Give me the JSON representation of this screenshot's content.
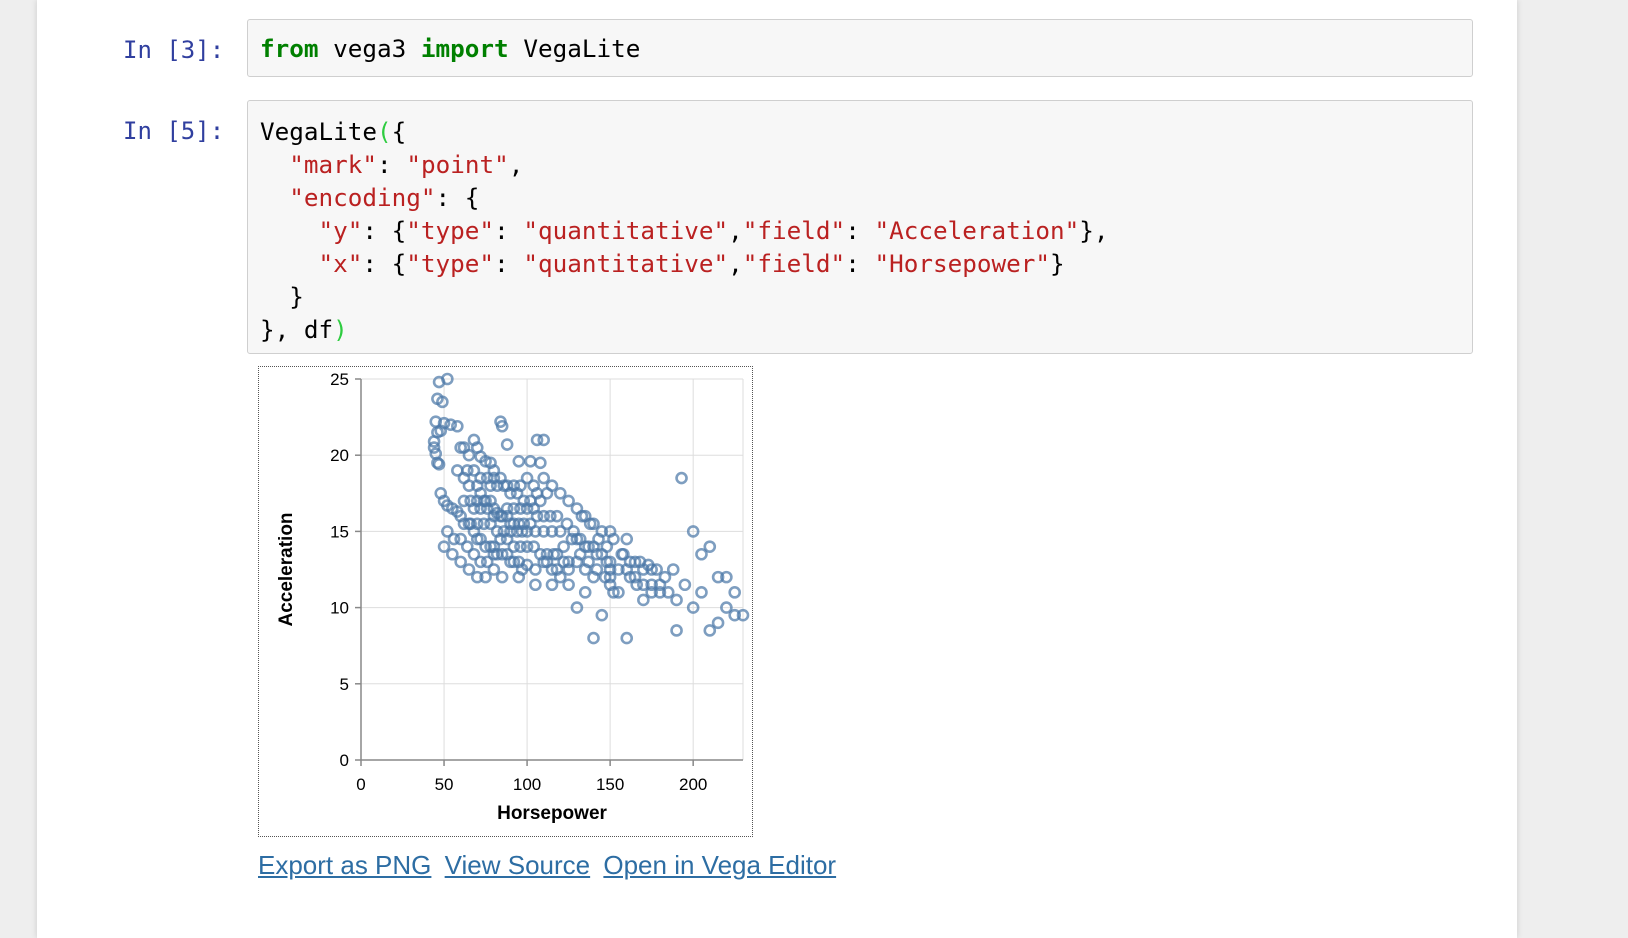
{
  "cells": [
    {
      "prompt": "In [3]:",
      "code_tokens": [
        {
          "t": "from",
          "c": "kw"
        },
        {
          "t": " vega3 ",
          "c": ""
        },
        {
          "t": "import",
          "c": "kw"
        },
        {
          "t": " VegaLite",
          "c": ""
        }
      ]
    },
    {
      "prompt": "In [5]:",
      "code_lines": [
        [
          {
            "t": "VegaLite",
            "c": ""
          },
          {
            "t": "(",
            "c": "br"
          },
          {
            "t": "{",
            "c": ""
          }
        ],
        [
          {
            "t": "  ",
            "c": ""
          },
          {
            "t": "\"mark\"",
            "c": "str"
          },
          {
            "t": ": ",
            "c": ""
          },
          {
            "t": "\"point\"",
            "c": "str"
          },
          {
            "t": ",",
            "c": ""
          }
        ],
        [
          {
            "t": "  ",
            "c": ""
          },
          {
            "t": "\"encoding\"",
            "c": "str"
          },
          {
            "t": ": {",
            "c": ""
          }
        ],
        [
          {
            "t": "    ",
            "c": ""
          },
          {
            "t": "\"y\"",
            "c": "str"
          },
          {
            "t": ": {",
            "c": ""
          },
          {
            "t": "\"type\"",
            "c": "str"
          },
          {
            "t": ": ",
            "c": ""
          },
          {
            "t": "\"quantitative\"",
            "c": "str"
          },
          {
            "t": ",",
            "c": ""
          },
          {
            "t": "\"field\"",
            "c": "str"
          },
          {
            "t": ": ",
            "c": ""
          },
          {
            "t": "\"Acceleration\"",
            "c": "str"
          },
          {
            "t": "},",
            "c": ""
          }
        ],
        [
          {
            "t": "    ",
            "c": ""
          },
          {
            "t": "\"x\"",
            "c": "str"
          },
          {
            "t": ": {",
            "c": ""
          },
          {
            "t": "\"type\"",
            "c": "str"
          },
          {
            "t": ": ",
            "c": ""
          },
          {
            "t": "\"quantitative\"",
            "c": "str"
          },
          {
            "t": ",",
            "c": ""
          },
          {
            "t": "\"field\"",
            "c": "str"
          },
          {
            "t": ": ",
            "c": ""
          },
          {
            "t": "\"Horsepower\"",
            "c": "str"
          },
          {
            "t": "}",
            "c": ""
          }
        ],
        [
          {
            "t": "  }",
            "c": ""
          }
        ],
        [
          {
            "t": "}, df",
            "c": ""
          },
          {
            "t": ")",
            "c": "br"
          }
        ]
      ]
    }
  ],
  "links": {
    "export_png": "Export as PNG",
    "view_source": "View Source",
    "open_editor": "Open in Vega Editor"
  },
  "colors": {
    "point_stroke": "#4c78a8",
    "link": "#2d6da3",
    "keyword": "#008000",
    "string": "#ba2121",
    "prompt": "#303f9f"
  },
  "chart_data": {
    "type": "scatter",
    "mark": "point",
    "xlabel": "Horsepower",
    "ylabel": "Acceleration",
    "xlim": [
      0,
      230
    ],
    "ylim": [
      0,
      25
    ],
    "xticks": [
      0,
      50,
      100,
      150,
      200
    ],
    "yticks": [
      0,
      5,
      10,
      15,
      20,
      25
    ],
    "grid": true,
    "points": [
      [
        47,
        24.8
      ],
      [
        52,
        25
      ],
      [
        46,
        23.7
      ],
      [
        49,
        23.5
      ],
      [
        45,
        22.2
      ],
      [
        48,
        21.6
      ],
      [
        46,
        21.5
      ],
      [
        44,
        20.9
      ],
      [
        44,
        20.5
      ],
      [
        45,
        20.1
      ],
      [
        46,
        19.5
      ],
      [
        47,
        19.4
      ],
      [
        50,
        22.1
      ],
      [
        54,
        22
      ],
      [
        58,
        21.9
      ],
      [
        60,
        20.5
      ],
      [
        62,
        20.5
      ],
      [
        65,
        20
      ],
      [
        68,
        21
      ],
      [
        70,
        20.5
      ],
      [
        72,
        19.9
      ],
      [
        75,
        19.6
      ],
      [
        78,
        19.5
      ],
      [
        80,
        19
      ],
      [
        84,
        22.2
      ],
      [
        85,
        21.9
      ],
      [
        88,
        20.7
      ],
      [
        95,
        19.6
      ],
      [
        102,
        19.6
      ],
      [
        106,
        21
      ],
      [
        110,
        21
      ],
      [
        58,
        19
      ],
      [
        62,
        18.5
      ],
      [
        65,
        18
      ],
      [
        70,
        18
      ],
      [
        72,
        17.5
      ],
      [
        75,
        17
      ],
      [
        78,
        17
      ],
      [
        80,
        16.5
      ],
      [
        82,
        16.2
      ],
      [
        85,
        16
      ],
      [
        88,
        16
      ],
      [
        90,
        15.5
      ],
      [
        92,
        15.5
      ],
      [
        95,
        15.5
      ],
      [
        97,
        15
      ],
      [
        100,
        15
      ],
      [
        105,
        15
      ],
      [
        110,
        15
      ],
      [
        115,
        15
      ],
      [
        120,
        15
      ],
      [
        48,
        17.5
      ],
      [
        50,
        17
      ],
      [
        52,
        16.7
      ],
      [
        55,
        16.5
      ],
      [
        58,
        16.3
      ],
      [
        60,
        16
      ],
      [
        62,
        15.5
      ],
      [
        65,
        15.5
      ],
      [
        68,
        15
      ],
      [
        70,
        14.5
      ],
      [
        72,
        14.5
      ],
      [
        75,
        14
      ],
      [
        78,
        14
      ],
      [
        80,
        14
      ],
      [
        82,
        13.5
      ],
      [
        85,
        13.5
      ],
      [
        88,
        13.5
      ],
      [
        90,
        13
      ],
      [
        92,
        13
      ],
      [
        95,
        13
      ],
      [
        97,
        12.5
      ],
      [
        100,
        12.8
      ],
      [
        105,
        12.5
      ],
      [
        110,
        13
      ],
      [
        112,
        13
      ],
      [
        115,
        12.5
      ],
      [
        118,
        12.5
      ],
      [
        122,
        13
      ],
      [
        125,
        13
      ],
      [
        130,
        14.5
      ],
      [
        132,
        14.5
      ],
      [
        135,
        14
      ],
      [
        137,
        14
      ],
      [
        140,
        14
      ],
      [
        142,
        13.5
      ],
      [
        145,
        13.5
      ],
      [
        148,
        13
      ],
      [
        150,
        13
      ],
      [
        150,
        12.5
      ],
      [
        150,
        12
      ],
      [
        150,
        11.5
      ],
      [
        152,
        11
      ],
      [
        155,
        11
      ],
      [
        160,
        14.5
      ],
      [
        165,
        13
      ],
      [
        165,
        12
      ],
      [
        170,
        12.5
      ],
      [
        170,
        11.5
      ],
      [
        175,
        12.5
      ],
      [
        175,
        11.5
      ],
      [
        175,
        11
      ],
      [
        180,
        11.5
      ],
      [
        180,
        11
      ],
      [
        190,
        10.5
      ],
      [
        150,
        15
      ],
      [
        145,
        15
      ],
      [
        140,
        15.5
      ],
      [
        135,
        16
      ],
      [
        130,
        16.5
      ],
      [
        125,
        17
      ],
      [
        120,
        17.5
      ],
      [
        115,
        18
      ],
      [
        110,
        18.5
      ],
      [
        108,
        19.5
      ],
      [
        112,
        17.5
      ],
      [
        118,
        16
      ],
      [
        124,
        15.5
      ],
      [
        128,
        15
      ],
      [
        133,
        16
      ],
      [
        138,
        15.5
      ],
      [
        143,
        14.5
      ],
      [
        148,
        14
      ],
      [
        152,
        14.5
      ],
      [
        157,
        13.5
      ],
      [
        162,
        13
      ],
      [
        168,
        13
      ],
      [
        173,
        12.8
      ],
      [
        178,
        12.5
      ],
      [
        183,
        12
      ],
      [
        188,
        12.5
      ],
      [
        193,
        18.5
      ],
      [
        200,
        15
      ],
      [
        205,
        13.5
      ],
      [
        210,
        14
      ],
      [
        215,
        12
      ],
      [
        220,
        12
      ],
      [
        225,
        11
      ],
      [
        220,
        10
      ],
      [
        225,
        9.5
      ],
      [
        230,
        9.5
      ],
      [
        215,
        9
      ],
      [
        210,
        8.5
      ],
      [
        190,
        8.5
      ],
      [
        160,
        8
      ],
      [
        140,
        8
      ],
      [
        145,
        9.5
      ],
      [
        130,
        10
      ],
      [
        135,
        11
      ],
      [
        125,
        11.5
      ],
      [
        115,
        11.5
      ],
      [
        105,
        11.5
      ],
      [
        95,
        12
      ],
      [
        85,
        12
      ],
      [
        80,
        12.5
      ],
      [
        75,
        12
      ],
      [
        70,
        12
      ],
      [
        65,
        12.5
      ],
      [
        60,
        13
      ],
      [
        55,
        13.5
      ],
      [
        50,
        14
      ],
      [
        52,
        15
      ],
      [
        56,
        14.5
      ],
      [
        60,
        14.5
      ],
      [
        64,
        14
      ],
      [
        68,
        13.5
      ],
      [
        72,
        13
      ],
      [
        76,
        13
      ],
      [
        80,
        13.5
      ],
      [
        84,
        14.5
      ],
      [
        88,
        14.5
      ],
      [
        92,
        14
      ],
      [
        96,
        14
      ],
      [
        100,
        14
      ],
      [
        104,
        14
      ],
      [
        108,
        13.5
      ],
      [
        112,
        13.5
      ],
      [
        116,
        13.5
      ],
      [
        66,
        15.5
      ],
      [
        70,
        15.5
      ],
      [
        74,
        15.5
      ],
      [
        78,
        15.5
      ],
      [
        82,
        15
      ],
      [
        86,
        15
      ],
      [
        90,
        15
      ],
      [
        94,
        15
      ],
      [
        98,
        15.5
      ],
      [
        102,
        15.5
      ],
      [
        106,
        16
      ],
      [
        110,
        16
      ],
      [
        114,
        16
      ],
      [
        68,
        16.5
      ],
      [
        72,
        16.5
      ],
      [
        76,
        16.5
      ],
      [
        80,
        16
      ],
      [
        84,
        16
      ],
      [
        88,
        16.5
      ],
      [
        92,
        16.5
      ],
      [
        96,
        16.5
      ],
      [
        100,
        16.5
      ],
      [
        104,
        16.5
      ],
      [
        108,
        17
      ],
      [
        62,
        17
      ],
      [
        66,
        17
      ],
      [
        70,
        17
      ],
      [
        74,
        17
      ],
      [
        78,
        18
      ],
      [
        82,
        18
      ],
      [
        86,
        18
      ],
      [
        90,
        17.5
      ],
      [
        94,
        17.5
      ],
      [
        98,
        17
      ],
      [
        102,
        17
      ],
      [
        106,
        17.5
      ],
      [
        64,
        19
      ],
      [
        68,
        19
      ],
      [
        72,
        18.5
      ],
      [
        76,
        18.5
      ],
      [
        80,
        18.5
      ],
      [
        84,
        18.5
      ],
      [
        88,
        18
      ],
      [
        92,
        18
      ],
      [
        96,
        18
      ],
      [
        100,
        18.5
      ],
      [
        104,
        18
      ],
      [
        160,
        12.5
      ],
      [
        155,
        12.5
      ],
      [
        158,
        13.5
      ],
      [
        162,
        12
      ],
      [
        166,
        11.5
      ],
      [
        170,
        10.5
      ],
      [
        185,
        11
      ],
      [
        195,
        11.5
      ],
      [
        200,
        10
      ],
      [
        205,
        11
      ],
      [
        140,
        12
      ],
      [
        135,
        12.5
      ],
      [
        130,
        13
      ],
      [
        125,
        12.5
      ],
      [
        120,
        12
      ],
      [
        118,
        13.5
      ],
      [
        122,
        14
      ],
      [
        127,
        14.5
      ],
      [
        132,
        13.5
      ],
      [
        137,
        13
      ],
      [
        142,
        12.5
      ],
      [
        147,
        12
      ]
    ]
  }
}
